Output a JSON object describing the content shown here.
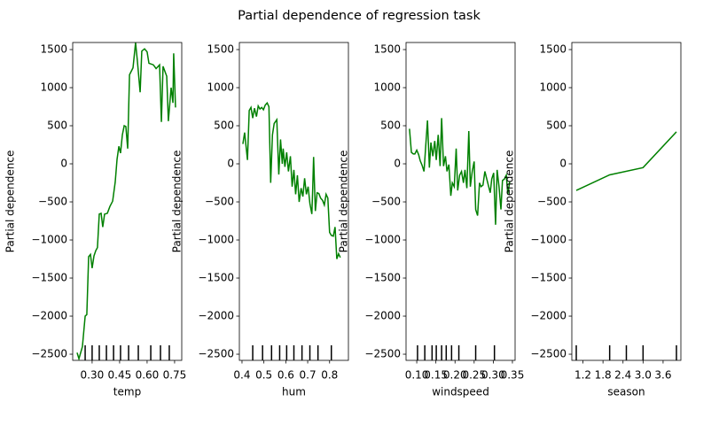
{
  "title": "Partial dependence of regression task",
  "chart_data": [
    {
      "type": "line",
      "xlabel": "temp",
      "ylabel": "Partial dependence",
      "color": "#008000",
      "x": [
        0.218,
        0.228,
        0.247,
        0.262,
        0.271,
        0.281,
        0.291,
        0.3,
        0.31,
        0.32,
        0.329,
        0.339,
        0.349,
        0.358,
        0.368,
        0.383,
        0.397,
        0.412,
        0.426,
        0.436,
        0.446,
        0.455,
        0.465,
        0.475,
        0.484,
        0.494,
        0.504,
        0.523,
        0.537,
        0.547,
        0.562,
        0.571,
        0.586,
        0.6,
        0.61,
        0.634,
        0.649,
        0.668,
        0.678,
        0.687,
        0.707,
        0.716,
        0.731,
        0.741,
        0.745,
        0.755
      ],
      "values": [
        -2480,
        -2560,
        -2400,
        -2000,
        -1980,
        -1220,
        -1190,
        -1370,
        -1210,
        -1140,
        -1100,
        -660,
        -650,
        -830,
        -660,
        -650,
        -560,
        -490,
        -240,
        60,
        230,
        140,
        380,
        500,
        490,
        200,
        1170,
        1260,
        1590,
        1350,
        940,
        1480,
        1510,
        1470,
        1320,
        1300,
        1250,
        1300,
        550,
        1280,
        1150,
        560,
        1000,
        800,
        1450,
        740
      ],
      "deciles": [
        0.262,
        0.3,
        0.339,
        0.378,
        0.417,
        0.455,
        0.499,
        0.552,
        0.62,
        0.673,
        0.721
      ],
      "xlim": [
        0.194,
        0.789
      ],
      "xticks": [
        {
          "value": 0.3,
          "label": "0.30"
        },
        0.45,
        {
          "value": 0.6,
          "label": "0.60"
        },
        0.75
      ],
      "ylim": [
        -2581,
        1593
      ],
      "yticks": [
        {
          "value": -2500,
          "label": "−2500"
        },
        {
          "value": -2000,
          "label": "−2000"
        },
        {
          "value": -1500,
          "label": "−1500"
        },
        {
          "value": -1000,
          "label": "−1000"
        },
        {
          "value": -500,
          "label": "−500"
        },
        0,
        500,
        1000,
        1500
      ]
    },
    {
      "type": "line",
      "xlabel": "hum",
      "ylabel": "Partial dependence",
      "color": "#008000",
      "x": [
        0.404,
        0.412,
        0.425,
        0.433,
        0.441,
        0.449,
        0.457,
        0.466,
        0.474,
        0.482,
        0.49,
        0.498,
        0.506,
        0.515,
        0.523,
        0.531,
        0.539,
        0.547,
        0.559,
        0.568,
        0.576,
        0.584,
        0.588,
        0.596,
        0.604,
        0.612,
        0.621,
        0.629,
        0.637,
        0.645,
        0.653,
        0.661,
        0.67,
        0.678,
        0.686,
        0.694,
        0.702,
        0.71,
        0.719,
        0.723,
        0.727,
        0.735,
        0.743,
        0.751,
        0.759,
        0.768,
        0.776,
        0.784,
        0.792,
        0.8,
        0.808,
        0.817,
        0.825,
        0.833,
        0.841,
        0.849
      ],
      "values": [
        260,
        410,
        50,
        700,
        740,
        600,
        730,
        620,
        760,
        720,
        740,
        710,
        770,
        800,
        750,
        -250,
        380,
        530,
        580,
        -140,
        320,
        0,
        200,
        -40,
        150,
        -100,
        100,
        -300,
        -80,
        -400,
        -150,
        -500,
        -320,
        -430,
        -190,
        -400,
        -300,
        -520,
        -660,
        -320,
        90,
        -620,
        -380,
        -390,
        -450,
        -480,
        -540,
        -400,
        -450,
        -900,
        -940,
        -950,
        -830,
        -1250,
        -1180,
        -1230
      ],
      "deciles": [
        0.449,
        0.494,
        0.535,
        0.572,
        0.604,
        0.637,
        0.674,
        0.71,
        0.747,
        0.808
      ],
      "xlim": [
        0.388,
        0.886
      ],
      "xticks": [
        0.4,
        0.5,
        0.6,
        0.7,
        0.8
      ],
      "ylim": [
        -2581,
        1593
      ],
      "yticks": [
        {
          "value": -2500,
          "label": "−2500"
        },
        {
          "value": -2000,
          "label": "−2000"
        },
        {
          "value": -1500,
          "label": "−1500"
        },
        {
          "value": -1000,
          "label": "−1000"
        },
        {
          "value": -500,
          "label": "−500"
        },
        0,
        500,
        1000,
        1500
      ]
    },
    {
      "type": "line",
      "xlabel": "windspeed",
      "ylabel": "Partial dependence",
      "color": "#008000",
      "x": [
        0.081,
        0.086,
        0.091,
        0.095,
        0.1,
        0.105,
        0.109,
        0.114,
        0.119,
        0.123,
        0.128,
        0.133,
        0.137,
        0.142,
        0.147,
        0.151,
        0.156,
        0.161,
        0.165,
        0.17,
        0.175,
        0.179,
        0.184,
        0.189,
        0.193,
        0.198,
        0.203,
        0.207,
        0.212,
        0.217,
        0.222,
        0.226,
        0.231,
        0.236,
        0.24,
        0.245,
        0.25,
        0.254,
        0.259,
        0.264,
        0.268,
        0.273,
        0.278,
        0.283,
        0.287,
        0.292,
        0.296,
        0.301,
        0.306,
        0.31,
        0.315,
        0.32,
        0.324,
        0.329,
        0.334,
        0.338,
        0.343
      ],
      "values": [
        460,
        150,
        130,
        130,
        180,
        120,
        40,
        -20,
        -100,
        200,
        570,
        -50,
        280,
        100,
        300,
        50,
        380,
        -30,
        600,
        -30,
        100,
        -100,
        -10,
        -420,
        -250,
        -300,
        200,
        -350,
        -150,
        -100,
        -250,
        -80,
        -320,
        430,
        -300,
        -100,
        30,
        -600,
        -680,
        -250,
        -300,
        -280,
        -100,
        -200,
        -280,
        -380,
        -200,
        -120,
        -800,
        -80,
        -300,
        -600,
        -220,
        -200,
        -150,
        -400,
        -230
      ],
      "deciles": [
        0.102,
        0.121,
        0.14,
        0.151,
        0.165,
        0.177,
        0.191,
        0.21,
        0.254,
        0.303
      ],
      "xlim": [
        0.072,
        0.357
      ],
      "xticks": [
        {
          "value": 0.1,
          "label": "0.10"
        },
        0.15,
        {
          "value": 0.2,
          "label": "0.20"
        },
        0.25,
        {
          "value": 0.3,
          "label": "0.30"
        },
        0.35
      ],
      "ylim": [
        -2581,
        1593
      ],
      "yticks": [
        {
          "value": -2500,
          "label": "−2500"
        },
        {
          "value": -2000,
          "label": "−2000"
        },
        {
          "value": -1500,
          "label": "−1500"
        },
        {
          "value": -1000,
          "label": "−1000"
        },
        {
          "value": -500,
          "label": "−500"
        },
        0,
        500,
        1000,
        1500
      ]
    },
    {
      "type": "line",
      "xlabel": "season",
      "ylabel": "Partial dependence",
      "color": "#008000",
      "x": [
        1,
        2,
        3,
        4
      ],
      "values": [
        -350,
        -145,
        -50,
        420
      ],
      "deciles": [
        1,
        2,
        2.5,
        3,
        4
      ],
      "xlim": [
        0.867,
        4.133
      ],
      "xticks": [
        1.2,
        1.8,
        2.4,
        {
          "value": 3,
          "label": "3.0"
        },
        3.6
      ],
      "ylim": [
        -2581,
        1593
      ],
      "yticks": [
        {
          "value": -2500,
          "label": "−2500"
        },
        {
          "value": -2000,
          "label": "−2000"
        },
        {
          "value": -1500,
          "label": "−1500"
        },
        {
          "value": -1000,
          "label": "−1000"
        },
        {
          "value": -500,
          "label": "−500"
        },
        0,
        500,
        1000,
        1500
      ]
    }
  ]
}
